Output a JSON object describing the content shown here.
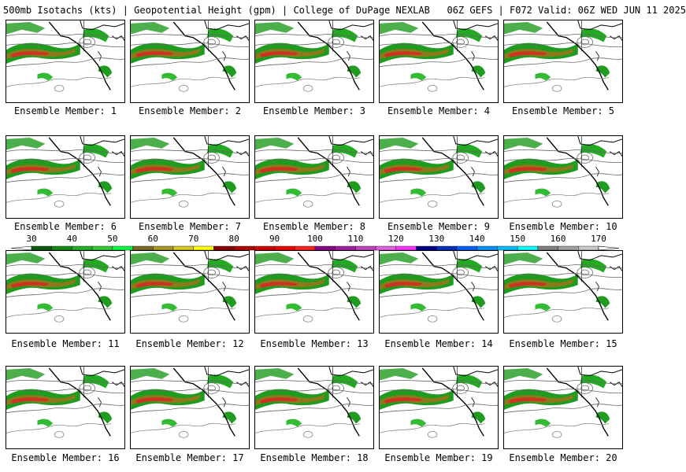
{
  "header": {
    "title": "500mb Isotachs (kts) | Geopotential Height (gpm) | College of DuPage NEXLAB   06Z GEFS | F072 Valid: 06Z WED JUN 11 2025"
  },
  "panels": [
    {
      "caption": "Ensemble Member: 1"
    },
    {
      "caption": "Ensemble Member: 2"
    },
    {
      "caption": "Ensemble Member: 3"
    },
    {
      "caption": "Ensemble Member: 4"
    },
    {
      "caption": "Ensemble Member: 5"
    },
    {
      "caption": "Ensemble Member: 6"
    },
    {
      "caption": "Ensemble Member: 7"
    },
    {
      "caption": "Ensemble Member: 8"
    },
    {
      "caption": "Ensemble Member: 9"
    },
    {
      "caption": "Ensemble Member: 10"
    },
    {
      "caption": "Ensemble Member: 11"
    },
    {
      "caption": "Ensemble Member: 12"
    },
    {
      "caption": "Ensemble Member: 13"
    },
    {
      "caption": "Ensemble Member: 14"
    },
    {
      "caption": "Ensemble Member: 15"
    },
    {
      "caption": "Ensemble Member: 16"
    },
    {
      "caption": "Ensemble Member: 17"
    },
    {
      "caption": "Ensemble Member: 18"
    },
    {
      "caption": "Ensemble Member: 19"
    },
    {
      "caption": "Ensemble Member: 20"
    }
  ],
  "colorbar": {
    "labels": [
      "30",
      "40",
      "50",
      "60",
      "70",
      "80",
      "90",
      "100",
      "110",
      "120",
      "130",
      "140",
      "150",
      "160",
      "170"
    ],
    "colors": [
      "#0a5a0a",
      "#118a11",
      "#22b022",
      "#33cc33",
      "#00ff44",
      "#7a6a20",
      "#a89a20",
      "#d8c820",
      "#ffff00",
      "#8b0000",
      "#b00000",
      "#d00000",
      "#ee0000",
      "#ff2020",
      "#8b008b",
      "#a020a0",
      "#c040c0",
      "#e060e0",
      "#ff33ff",
      "#00008b",
      "#0030c0",
      "#0060ff",
      "#0090ff",
      "#00bfff",
      "#00ffff",
      "#808080",
      "#a0a0a0",
      "#c8c8c8"
    ]
  }
}
